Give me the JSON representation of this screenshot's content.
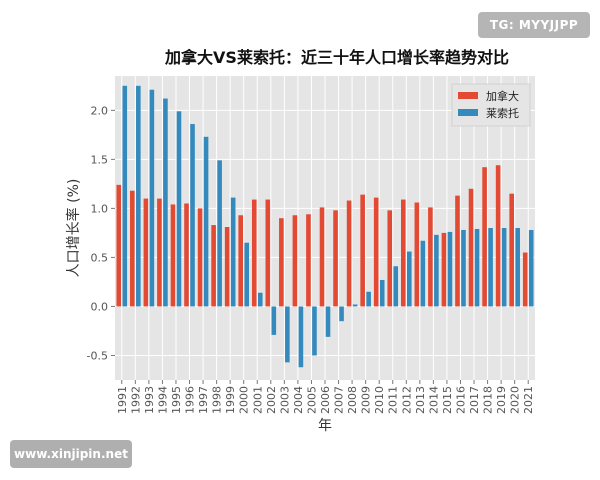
{
  "watermarks": {
    "top_right": "TG: MYYJJPP",
    "bottom_left": "www.xinjipin.net"
  },
  "chart_data": {
    "type": "bar",
    "title": "加拿大VS莱索托：近三十年人口增长率趋势对比",
    "xlabel": "年",
    "ylabel": "人口增长率 (%)",
    "ylim": [
      -0.75,
      2.35
    ],
    "yticks": [
      -0.5,
      0.0,
      0.5,
      1.0,
      1.5,
      2.0
    ],
    "ytick_labels": [
      "-0.5",
      "0.0",
      "0.5",
      "1.0",
      "1.5",
      "2.0"
    ],
    "grid": true,
    "legend_position": "top-right",
    "categories": [
      "1991",
      "1992",
      "1993",
      "1994",
      "1995",
      "1996",
      "1997",
      "1998",
      "1999",
      "2000",
      "2001",
      "2002",
      "2003",
      "2004",
      "2005",
      "2006",
      "2007",
      "2008",
      "2009",
      "2010",
      "2011",
      "2012",
      "2013",
      "2014",
      "2015",
      "2016",
      "2017",
      "2018",
      "2019",
      "2020",
      "2021"
    ],
    "series": [
      {
        "name": "加拿大",
        "color": "#E24A33",
        "values": [
          1.24,
          1.18,
          1.1,
          1.1,
          1.04,
          1.05,
          1.0,
          0.83,
          0.81,
          0.93,
          1.09,
          1.09,
          0.9,
          0.93,
          0.94,
          1.01,
          0.98,
          1.08,
          1.14,
          1.11,
          0.98,
          1.09,
          1.06,
          1.01,
          0.75,
          1.13,
          1.2,
          1.42,
          1.44,
          1.15,
          0.55
        ]
      },
      {
        "name": "莱索托",
        "color": "#348ABD",
        "values": [
          2.25,
          2.25,
          2.21,
          2.12,
          1.99,
          1.86,
          1.73,
          1.49,
          1.11,
          0.65,
          0.14,
          -0.29,
          -0.57,
          -0.62,
          -0.5,
          -0.31,
          -0.15,
          0.02,
          0.15,
          0.27,
          0.41,
          0.56,
          0.67,
          0.73,
          0.76,
          0.78,
          0.79,
          0.8,
          0.8,
          0.8,
          0.78
        ]
      }
    ]
  }
}
